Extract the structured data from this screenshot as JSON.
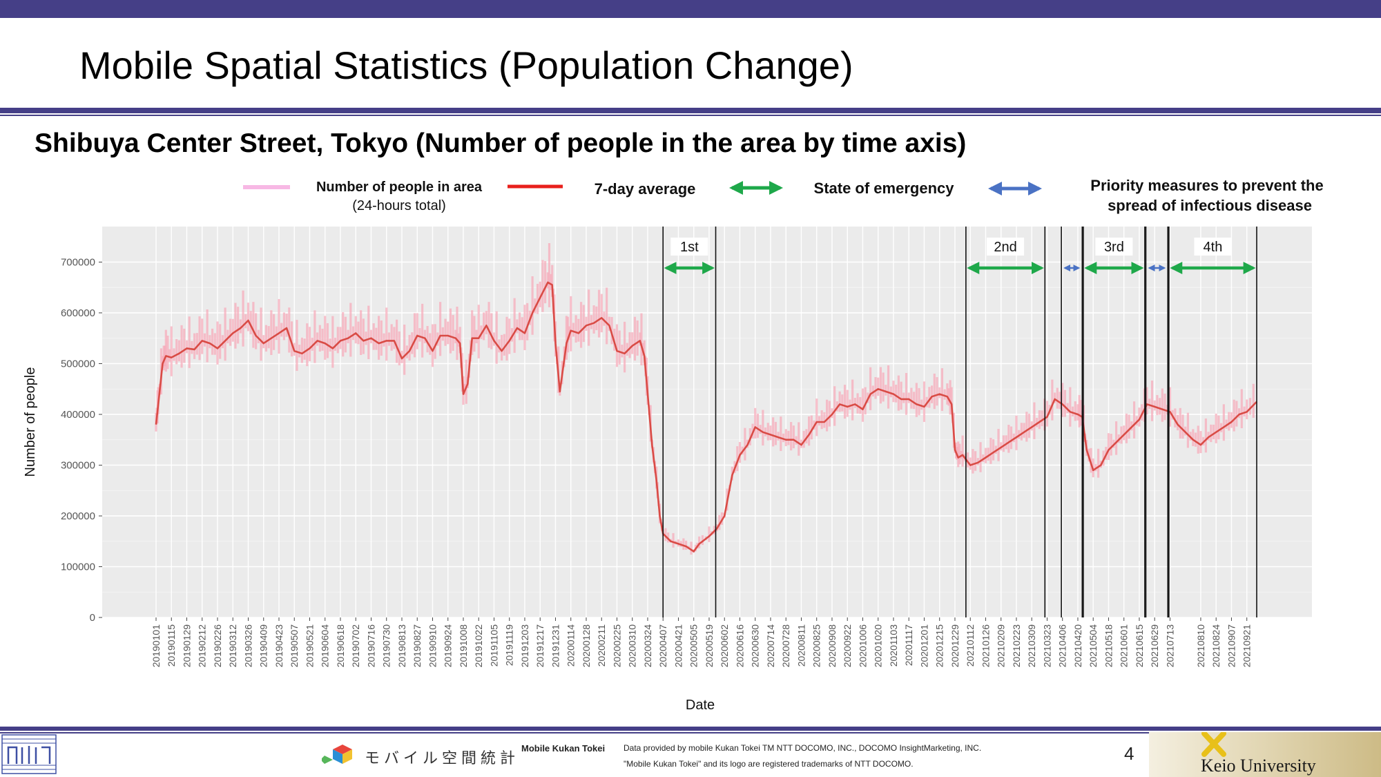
{
  "page": {
    "title": "Mobile Spatial Statistics (Population Change)",
    "subtitle": "Shibuya Center Street, Tokyo (Number of people in the area by time axis)",
    "page_number": "4"
  },
  "footer": {
    "mk_logo_text": "モバイル空間統計",
    "brand": "Mobile Kukan Tokei",
    "note1": "Data provided by mobile Kukan Tokei TM NTT DOCOMO, INC., DOCOMO InsightMarketing, INC.",
    "note2": "\"Mobile Kukan Tokei\" and its logo are registered trademarks of NTT DOCOMO.",
    "university": "Keio University"
  },
  "chart_data": {
    "type": "line",
    "title": "",
    "xlabel": "Date",
    "ylabel": "Number of people",
    "ylim": [
      0,
      770000
    ],
    "yticks": [
      0,
      100000,
      200000,
      300000,
      400000,
      500000,
      600000,
      700000
    ],
    "grid": true,
    "legend_position": "top",
    "x_range": [
      "20190101",
      "20210930"
    ],
    "x_tick_labels": [
      "20190101",
      "20190115",
      "20190129",
      "20190212",
      "20190226",
      "20190312",
      "20190326",
      "20190409",
      "20190423",
      "20190507",
      "20190521",
      "20190604",
      "20190618",
      "20190702",
      "20190716",
      "20190730",
      "20190813",
      "20190827",
      "20190910",
      "20190924",
      "20191008",
      "20191022",
      "20191105",
      "20191119",
      "20191203",
      "20191217",
      "20191231",
      "20200114",
      "20200128",
      "20200211",
      "20200225",
      "20200310",
      "20200324",
      "20200407",
      "20200421",
      "20200505",
      "20200519",
      "20200602",
      "20200616",
      "20200630",
      "20200714",
      "20200728",
      "20200811",
      "20200825",
      "20200908",
      "20200922",
      "20201006",
      "20201020",
      "20201103",
      "20201117",
      "20201201",
      "20201215",
      "20201229",
      "20210112",
      "20210126",
      "20210209",
      "20210223",
      "20210309",
      "20210323",
      "20210406",
      "20210420",
      "20210504",
      "20210518",
      "20210601",
      "20210615",
      "20210629",
      "20210713",
      "20210810",
      "20210824",
      "20210907",
      "20210921"
    ],
    "legend": [
      {
        "label": "Number of people in area",
        "sublabel": "(24-hours total)",
        "color": "#f7b8e4",
        "kind": "line"
      },
      {
        "label": "7-day average",
        "color": "#e8201c",
        "kind": "line"
      },
      {
        "label": "State of emergency",
        "color": "#1ea84a",
        "kind": "arrow"
      },
      {
        "label": "Priority measures to prevent the",
        "sublabel": "spread of infectious disease",
        "color": "#4a72c4",
        "kind": "arrow"
      }
    ],
    "series": [
      {
        "name": "7-day average",
        "color": "#d94b45",
        "points": [
          [
            "20190101",
            380000
          ],
          [
            "20190103",
            420000
          ],
          [
            "20190107",
            500000
          ],
          [
            "20190110",
            515000
          ],
          [
            "20190115",
            512000
          ],
          [
            "20190122",
            520000
          ],
          [
            "20190129",
            530000
          ],
          [
            "20190205",
            528000
          ],
          [
            "20190212",
            545000
          ],
          [
            "20190219",
            540000
          ],
          [
            "20190226",
            530000
          ],
          [
            "20190305",
            545000
          ],
          [
            "20190312",
            560000
          ],
          [
            "20190319",
            570000
          ],
          [
            "20190326",
            585000
          ],
          [
            "20190402",
            555000
          ],
          [
            "20190409",
            540000
          ],
          [
            "20190416",
            550000
          ],
          [
            "20190423",
            560000
          ],
          [
            "20190430",
            570000
          ],
          [
            "20190507",
            525000
          ],
          [
            "20190514",
            520000
          ],
          [
            "20190521",
            530000
          ],
          [
            "20190528",
            545000
          ],
          [
            "20190604",
            540000
          ],
          [
            "20190611",
            530000
          ],
          [
            "20190618",
            545000
          ],
          [
            "20190625",
            550000
          ],
          [
            "20190702",
            560000
          ],
          [
            "20190709",
            545000
          ],
          [
            "20190716",
            550000
          ],
          [
            "20190723",
            540000
          ],
          [
            "20190730",
            545000
          ],
          [
            "20190806",
            545000
          ],
          [
            "20190813",
            510000
          ],
          [
            "20190820",
            525000
          ],
          [
            "20190827",
            555000
          ],
          [
            "20190903",
            550000
          ],
          [
            "20190910",
            525000
          ],
          [
            "20190917",
            555000
          ],
          [
            "20190924",
            555000
          ],
          [
            "20191001",
            550000
          ],
          [
            "20191005",
            540000
          ],
          [
            "20191008",
            440000
          ],
          [
            "20191012",
            460000
          ],
          [
            "20191016",
            550000
          ],
          [
            "20191022",
            550000
          ],
          [
            "20191029",
            575000
          ],
          [
            "20191105",
            545000
          ],
          [
            "20191112",
            525000
          ],
          [
            "20191119",
            545000
          ],
          [
            "20191126",
            570000
          ],
          [
            "20191203",
            560000
          ],
          [
            "20191210",
            600000
          ],
          [
            "20191217",
            630000
          ],
          [
            "20191224",
            660000
          ],
          [
            "20191228",
            655000
          ],
          [
            "20191231",
            540000
          ],
          [
            "20200104",
            445000
          ],
          [
            "20200110",
            540000
          ],
          [
            "20200114",
            565000
          ],
          [
            "20200121",
            560000
          ],
          [
            "20200128",
            575000
          ],
          [
            "20200204",
            580000
          ],
          [
            "20200211",
            590000
          ],
          [
            "20200218",
            575000
          ],
          [
            "20200225",
            525000
          ],
          [
            "20200303",
            520000
          ],
          [
            "20200310",
            535000
          ],
          [
            "20200317",
            545000
          ],
          [
            "20200321",
            515000
          ],
          [
            "20200324",
            440000
          ],
          [
            "20200328",
            340000
          ],
          [
            "20200401",
            270000
          ],
          [
            "20200404",
            200000
          ],
          [
            "20200407",
            165000
          ],
          [
            "20200414",
            150000
          ],
          [
            "20200421",
            145000
          ],
          [
            "20200428",
            140000
          ],
          [
            "20200505",
            130000
          ],
          [
            "20200510",
            145000
          ],
          [
            "20200519",
            160000
          ],
          [
            "20200526",
            175000
          ],
          [
            "20200602",
            200000
          ],
          [
            "20200609",
            280000
          ],
          [
            "20200616",
            320000
          ],
          [
            "20200623",
            340000
          ],
          [
            "20200630",
            375000
          ],
          [
            "20200707",
            365000
          ],
          [
            "20200714",
            360000
          ],
          [
            "20200721",
            355000
          ],
          [
            "20200728",
            350000
          ],
          [
            "20200804",
            350000
          ],
          [
            "20200811",
            340000
          ],
          [
            "20200818",
            360000
          ],
          [
            "20200825",
            385000
          ],
          [
            "20200901",
            385000
          ],
          [
            "20200908",
            400000
          ],
          [
            "20200915",
            420000
          ],
          [
            "20200922",
            415000
          ],
          [
            "20200929",
            420000
          ],
          [
            "20201006",
            410000
          ],
          [
            "20201013",
            440000
          ],
          [
            "20201020",
            450000
          ],
          [
            "20201027",
            445000
          ],
          [
            "20201103",
            440000
          ],
          [
            "20201110",
            430000
          ],
          [
            "20201117",
            430000
          ],
          [
            "20201124",
            420000
          ],
          [
            "20201201",
            415000
          ],
          [
            "20201208",
            435000
          ],
          [
            "20201215",
            440000
          ],
          [
            "20201222",
            435000
          ],
          [
            "20201226",
            420000
          ],
          [
            "20201229",
            330000
          ],
          [
            "20210101",
            315000
          ],
          [
            "20210105",
            320000
          ],
          [
            "20210112",
            300000
          ],
          [
            "20210119",
            305000
          ],
          [
            "20210126",
            315000
          ],
          [
            "20210202",
            325000
          ],
          [
            "20210209",
            335000
          ],
          [
            "20210216",
            345000
          ],
          [
            "20210223",
            355000
          ],
          [
            "20210302",
            365000
          ],
          [
            "20210309",
            375000
          ],
          [
            "20210316",
            385000
          ],
          [
            "20210323",
            395000
          ],
          [
            "20210330",
            430000
          ],
          [
            "20210406",
            420000
          ],
          [
            "20210413",
            405000
          ],
          [
            "20210420",
            400000
          ],
          [
            "20210424",
            395000
          ],
          [
            "20210428",
            330000
          ],
          [
            "20210504",
            290000
          ],
          [
            "20210511",
            300000
          ],
          [
            "20210518",
            330000
          ],
          [
            "20210525",
            345000
          ],
          [
            "20210601",
            360000
          ],
          [
            "20210608",
            375000
          ],
          [
            "20210615",
            390000
          ],
          [
            "20210622",
            420000
          ],
          [
            "20210629",
            415000
          ],
          [
            "20210706",
            410000
          ],
          [
            "20210713",
            405000
          ],
          [
            "20210720",
            380000
          ],
          [
            "20210727",
            365000
          ],
          [
            "20210803",
            350000
          ],
          [
            "20210810",
            340000
          ],
          [
            "20210817",
            355000
          ],
          [
            "20210824",
            365000
          ],
          [
            "20210831",
            375000
          ],
          [
            "20210907",
            385000
          ],
          [
            "20210914",
            400000
          ],
          [
            "20210921",
            405000
          ],
          [
            "20210930",
            425000
          ]
        ]
      }
    ],
    "annotations": {
      "events": [
        {
          "label": "1st",
          "kind": "State of emergency",
          "start": "20200407",
          "end": "20200525"
        },
        {
          "label": "2nd",
          "kind": "State of emergency",
          "start": "20210108",
          "end": "20210321"
        },
        {
          "label": "",
          "kind": "Priority measures to prevent the spread of infectious disease",
          "start": "20210405",
          "end": "20210424"
        },
        {
          "label": "3rd",
          "kind": "State of emergency",
          "start": "20210425",
          "end": "20210620"
        },
        {
          "label": "",
          "kind": "Priority measures to prevent the spread of infectious disease",
          "start": "20210621",
          "end": "20210711"
        },
        {
          "label": "4th",
          "kind": "State of emergency",
          "start": "20210712",
          "end": "20210930"
        }
      ]
    }
  }
}
